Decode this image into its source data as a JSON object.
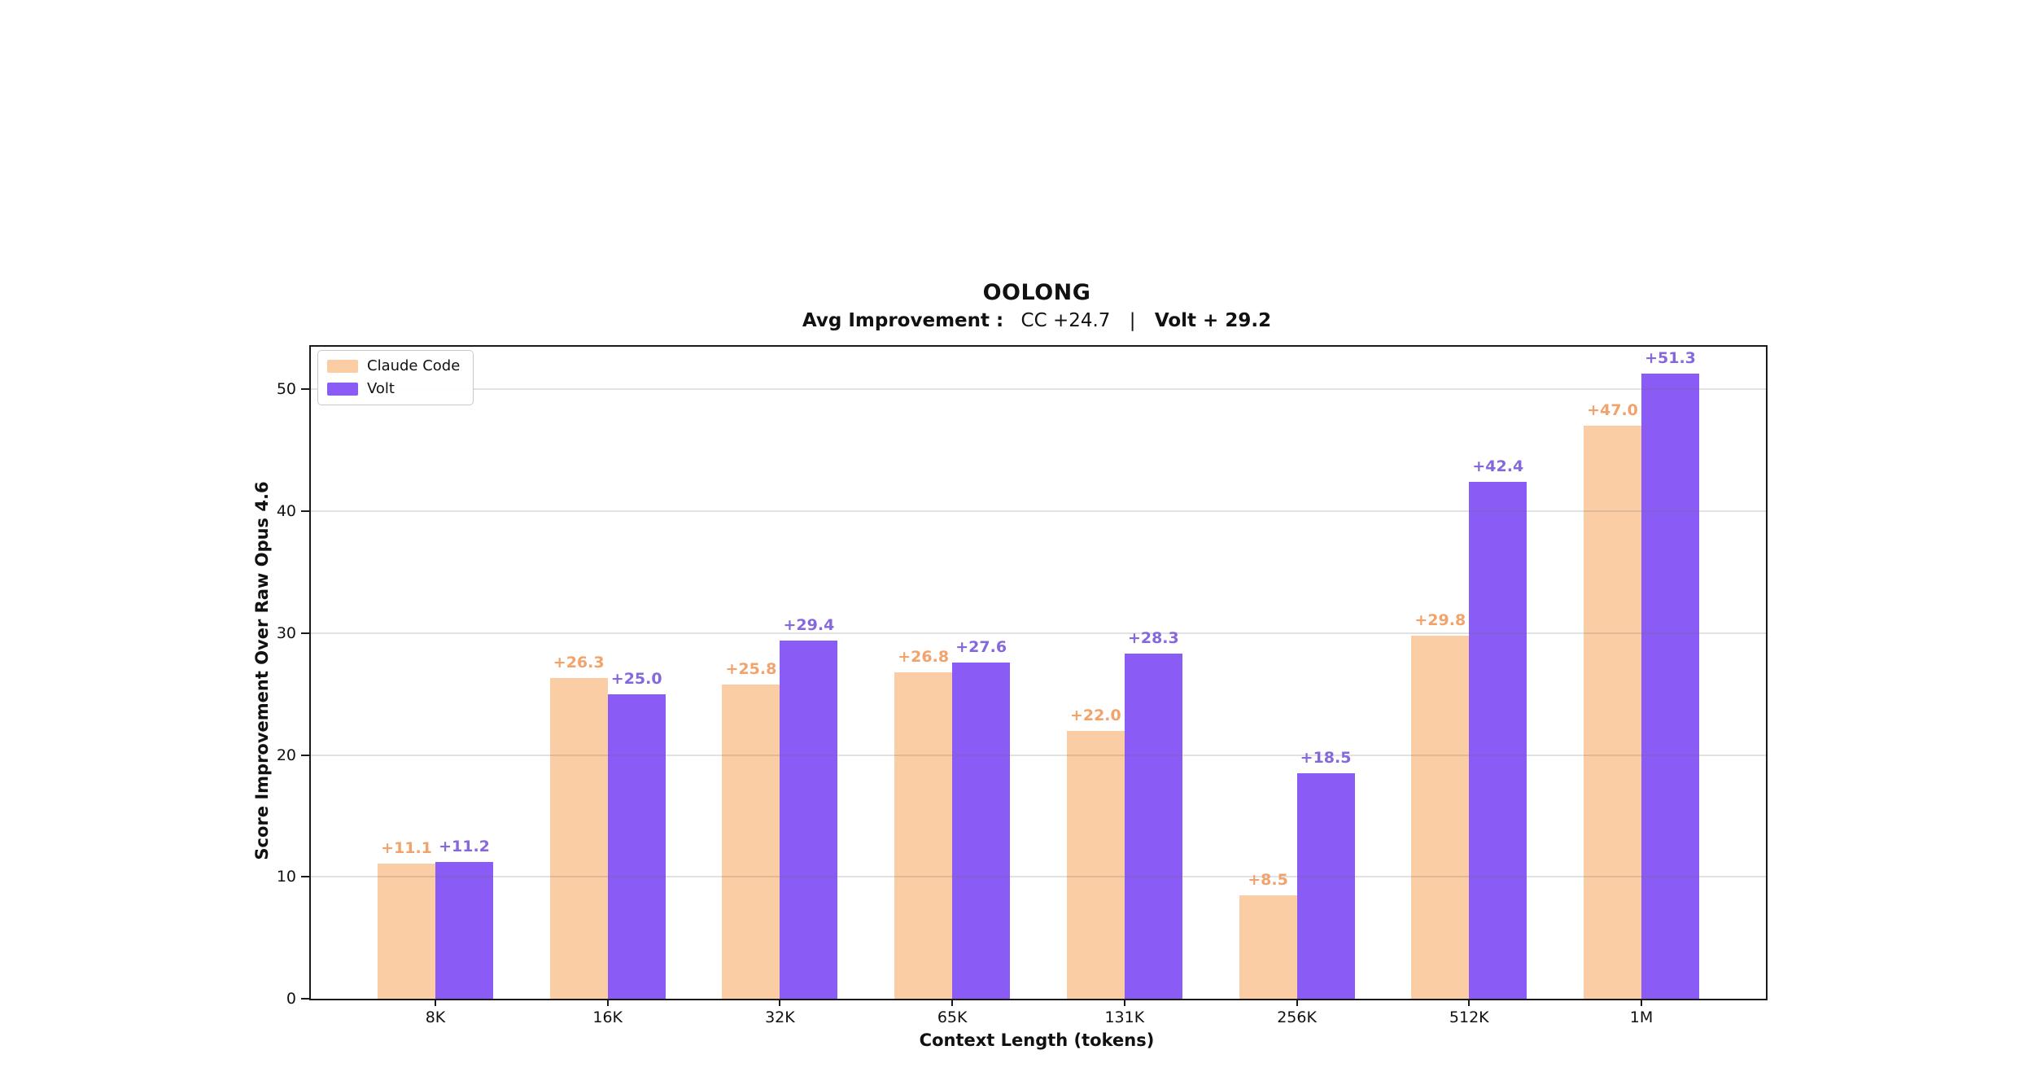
{
  "figure": {
    "title": "OOLONG",
    "subtitle": {
      "label": "Avg Improvement :",
      "cc": "CC +24.7",
      "sep": "|",
      "volt": "Volt + 29.2"
    }
  },
  "chart_data": {
    "type": "bar",
    "title": "OOLONG",
    "subtitle": "Avg Improvement :  CC +24.7  |  Volt + 29.2",
    "categories": [
      "8K",
      "16K",
      "32K",
      "65K",
      "131K",
      "256K",
      "512K",
      "1M"
    ],
    "series": [
      {
        "name": "Claude Code",
        "color": "#FACDA4",
        "label_color": "#F2A36B",
        "values": [
          11.1,
          26.3,
          25.8,
          26.8,
          22.0,
          8.5,
          29.8,
          47.0
        ]
      },
      {
        "name": "Volt",
        "color": "#8A5CF5",
        "label_color": "#8668DD",
        "values": [
          11.2,
          25.0,
          29.4,
          27.6,
          28.3,
          18.5,
          42.4,
          51.3
        ]
      }
    ],
    "xlabel": "Context Length (tokens)",
    "ylabel": "Score Improvement Over Raw Opus 4.6",
    "ylim": [
      0,
      53.5
    ],
    "yticks": [
      0,
      10,
      20,
      30,
      40,
      50
    ],
    "grid": true,
    "legend_position": "upper left",
    "value_label_format": "+{value:.1f}"
  }
}
